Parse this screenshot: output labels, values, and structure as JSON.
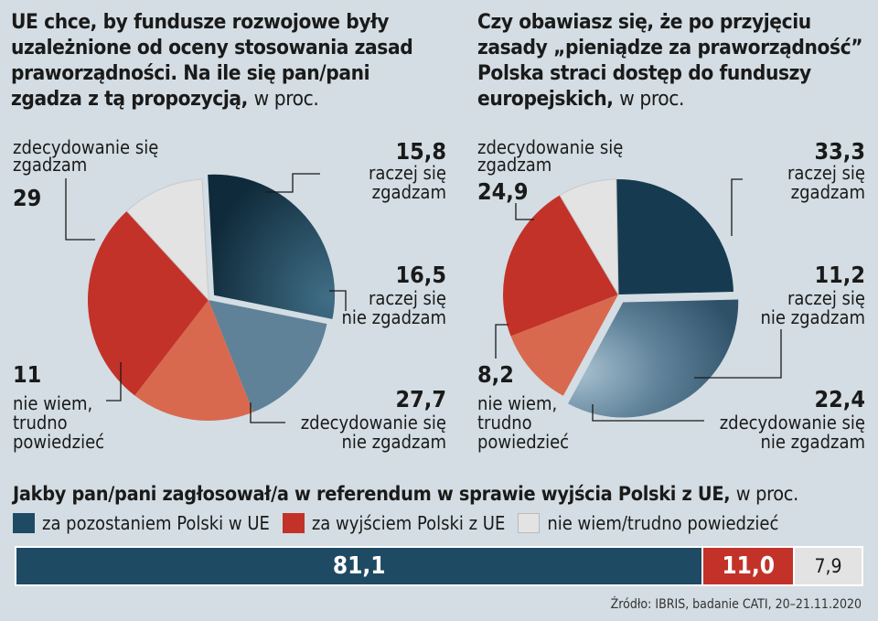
{
  "chart_data": [
    {
      "type": "pie",
      "title": "UE chce, by fundusze rozwojowe były uzależnione od oceny stosowania zasad praworządności. Na ile się pan/pani zgadza z tą propozycją,",
      "unit": "w proc.",
      "slices": [
        {
          "label": "zdecydowanie się zgadzam",
          "value": 29,
          "value_text": "29",
          "color": "#1f4a63"
        },
        {
          "label": "raczej się zgadzam",
          "value": 15.8,
          "value_text": "15,8",
          "color": "#5f8299"
        },
        {
          "label": "raczej się nie zgadzam",
          "value": 16.5,
          "value_text": "16,5",
          "color": "#d8694f"
        },
        {
          "label": "zdecydowanie się nie zgadzam",
          "value": 27.7,
          "value_text": "27,7",
          "color": "#c23229"
        },
        {
          "label": "nie wiem, trudno powiedzieć",
          "value": 11,
          "value_text": "11",
          "color": "#e3e3e3"
        }
      ]
    },
    {
      "type": "pie",
      "title": "Czy obawiasz się, że po przyjęciu zasady „pieniądze za praworządność” Polska straci dostęp do funduszy europejskich,",
      "unit": "w proc.",
      "slices": [
        {
          "label": "zdecydowanie się zgadzam",
          "value": 24.9,
          "value_text": "24,9",
          "color": "#1f4a63"
        },
        {
          "label": "raczej się zgadzam",
          "value": 33.3,
          "value_text": "33,3",
          "color": "#5f8299"
        },
        {
          "label": "raczej się nie zgadzam",
          "value": 11.2,
          "value_text": "11,2",
          "color": "#d8694f"
        },
        {
          "label": "zdecydowanie się nie zgadzam",
          "value": 22.4,
          "value_text": "22,4",
          "color": "#c23229"
        },
        {
          "label": "nie wiem, trudno powiedzieć",
          "value": 8.2,
          "value_text": "8,2",
          "color": "#e3e3e3"
        }
      ]
    },
    {
      "type": "bar",
      "stacked": true,
      "orientation": "horizontal",
      "title": "Jakby pan/pani zagłosował/a w referendum w sprawie wyjścia Polski z UE,",
      "unit": "w proc.",
      "series": [
        {
          "name": "za pozostaniem Polski w UE",
          "value": 81.1,
          "value_text": "81,1",
          "color": "#1f4a63"
        },
        {
          "name": "za wyjściem Polski z UE",
          "value": 11.0,
          "value_text": "11,0",
          "color": "#c23229"
        },
        {
          "name": "nie wiem/trudno powiedzieć",
          "value": 7.9,
          "value_text": "7,9",
          "color": "#e3e3e3"
        }
      ]
    }
  ],
  "titles": {
    "q1_main": "UE chce, by fundusze rozwojowe były uzależnione od oceny stosowania zasad praworządności. Na ile się pan/pani zgadza z tą propozycją,",
    "q2_main": "Czy obawiasz się, że po przyjęciu zasady „pieniądze za praworządność” Polska straci dostęp do funduszy europejskich,",
    "q3_main": "Jakby pan/pani zagłosował/a w referendum w sprawie wyjścia Polski z UE,",
    "unit": "w proc."
  },
  "pie_labels": {
    "zdecydowanie_sie_zgadzam": [
      "zdecydowanie się",
      "zgadzam"
    ],
    "raczej_sie_zgadzam": [
      "raczej się",
      "zgadzam"
    ],
    "raczej_sie_nie_zgadzam": [
      "raczej się",
      "nie zgadzam"
    ],
    "zdecydowanie_sie_nie_zgadzam": [
      "zdecydowanie się",
      "nie zgadzam"
    ],
    "nie_wiem_left": [
      "nie wiem,",
      "trudno",
      "powiedzieć"
    ],
    "nie_wiem_right": [
      "nie wiem,",
      "trudno",
      "powiedzieć"
    ]
  },
  "source": "Źródło: IBRIS, badanie CATI, 20–21.11.2020"
}
